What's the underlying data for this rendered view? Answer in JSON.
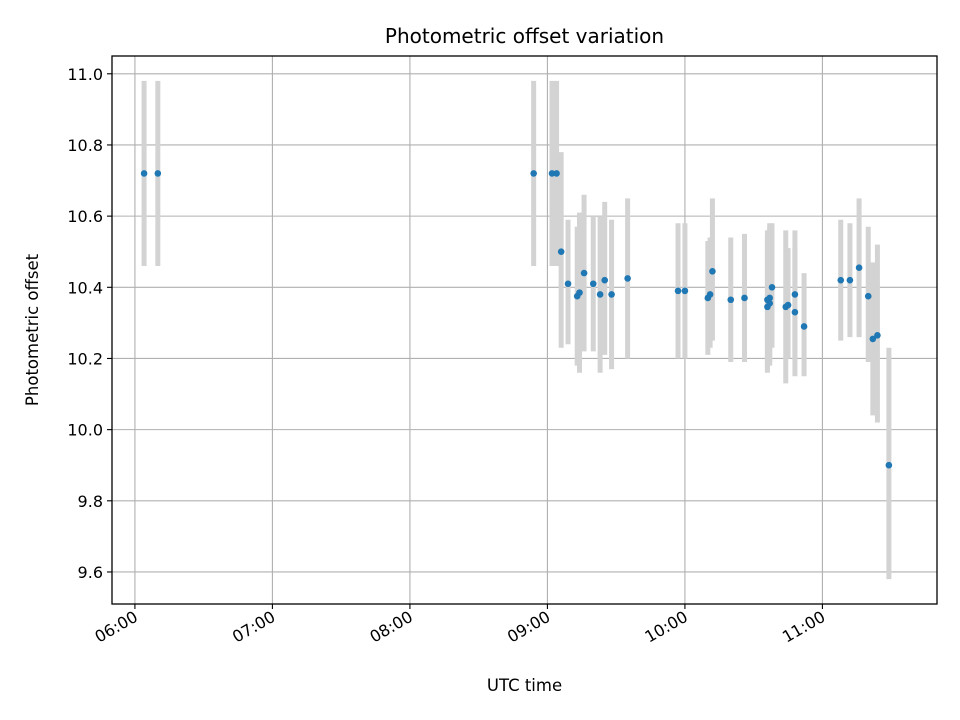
{
  "chart_data": {
    "type": "scatter",
    "title": "Photometric offset variation",
    "xlabel": "UTC time",
    "ylabel": "Photometric offset",
    "x_is_time": true,
    "xlim": [
      "05:50",
      "11:50"
    ],
    "ylim": [
      9.51,
      11.05
    ],
    "x_ticks": [
      "06:00",
      "07:00",
      "08:00",
      "09:00",
      "10:00",
      "11:00"
    ],
    "y_ticks": [
      "9.6",
      "9.8",
      "10.0",
      "10.2",
      "10.4",
      "10.6",
      "10.8",
      "11.0"
    ],
    "grid": true,
    "marker_color": "#1f77b4",
    "errorbar_color": "#d3d3d3",
    "points": [
      {
        "t": "06:04",
        "y": 10.72,
        "lo": 10.46,
        "hi": 10.98
      },
      {
        "t": "06:10",
        "y": 10.72,
        "lo": 10.46,
        "hi": 10.98
      },
      {
        "t": "08:54",
        "y": 10.72,
        "lo": 10.46,
        "hi": 10.98
      },
      {
        "t": "09:02",
        "y": 10.72,
        "lo": 10.46,
        "hi": 10.98
      },
      {
        "t": "09:04",
        "y": 10.72,
        "lo": 10.46,
        "hi": 10.98
      },
      {
        "t": "09:06",
        "y": 10.5,
        "lo": 10.23,
        "hi": 10.78
      },
      {
        "t": "09:09",
        "y": 10.41,
        "lo": 10.24,
        "hi": 10.59
      },
      {
        "t": "09:13",
        "y": 10.375,
        "lo": 10.18,
        "hi": 10.57
      },
      {
        "t": "09:14",
        "y": 10.385,
        "lo": 10.16,
        "hi": 10.61
      },
      {
        "t": "09:16",
        "y": 10.44,
        "lo": 10.22,
        "hi": 10.66
      },
      {
        "t": "09:20",
        "y": 10.41,
        "lo": 10.22,
        "hi": 10.6
      },
      {
        "t": "09:23",
        "y": 10.38,
        "lo": 10.16,
        "hi": 10.6
      },
      {
        "t": "09:25",
        "y": 10.42,
        "lo": 10.21,
        "hi": 10.64
      },
      {
        "t": "09:28",
        "y": 10.38,
        "lo": 10.17,
        "hi": 10.59
      },
      {
        "t": "09:35",
        "y": 10.425,
        "lo": 10.2,
        "hi": 10.65
      },
      {
        "t": "09:57",
        "y": 10.39,
        "lo": 10.2,
        "hi": 10.58
      },
      {
        "t": "10:00",
        "y": 10.39,
        "lo": 10.2,
        "hi": 10.58
      },
      {
        "t": "10:10",
        "y": 10.37,
        "lo": 10.21,
        "hi": 10.53
      },
      {
        "t": "10:11",
        "y": 10.38,
        "lo": 10.23,
        "hi": 10.54
      },
      {
        "t": "10:12",
        "y": 10.445,
        "lo": 10.25,
        "hi": 10.65
      },
      {
        "t": "10:20",
        "y": 10.365,
        "lo": 10.19,
        "hi": 10.54
      },
      {
        "t": "10:26",
        "y": 10.37,
        "lo": 10.19,
        "hi": 10.55
      },
      {
        "t": "10:36",
        "y": 10.345,
        "lo": 10.16,
        "hi": 10.54
      },
      {
        "t": "10:36",
        "y": 10.365,
        "lo": 10.17,
        "hi": 10.56
      },
      {
        "t": "10:37",
        "y": 10.355,
        "lo": 10.18,
        "hi": 10.57
      },
      {
        "t": "10:37",
        "y": 10.37,
        "lo": 10.19,
        "hi": 10.58
      },
      {
        "t": "10:38",
        "y": 10.4,
        "lo": 10.23,
        "hi": 10.58
      },
      {
        "t": "10:44",
        "y": 10.345,
        "lo": 10.13,
        "hi": 10.56
      },
      {
        "t": "10:45",
        "y": 10.35,
        "lo": 10.2,
        "hi": 10.51
      },
      {
        "t": "10:48",
        "y": 10.38,
        "lo": 10.2,
        "hi": 10.56
      },
      {
        "t": "10:48",
        "y": 10.33,
        "lo": 10.15,
        "hi": 10.51
      },
      {
        "t": "10:52",
        "y": 10.29,
        "lo": 10.15,
        "hi": 10.44
      },
      {
        "t": "11:08",
        "y": 10.42,
        "lo": 10.25,
        "hi": 10.59
      },
      {
        "t": "11:12",
        "y": 10.42,
        "lo": 10.26,
        "hi": 10.58
      },
      {
        "t": "11:16",
        "y": 10.455,
        "lo": 10.26,
        "hi": 10.65
      },
      {
        "t": "11:20",
        "y": 10.375,
        "lo": 10.19,
        "hi": 10.57
      },
      {
        "t": "11:22",
        "y": 10.255,
        "lo": 10.04,
        "hi": 10.47
      },
      {
        "t": "11:24",
        "y": 10.265,
        "lo": 10.02,
        "hi": 10.52
      },
      {
        "t": "11:29",
        "y": 9.9,
        "lo": 9.58,
        "hi": 10.23
      }
    ]
  }
}
